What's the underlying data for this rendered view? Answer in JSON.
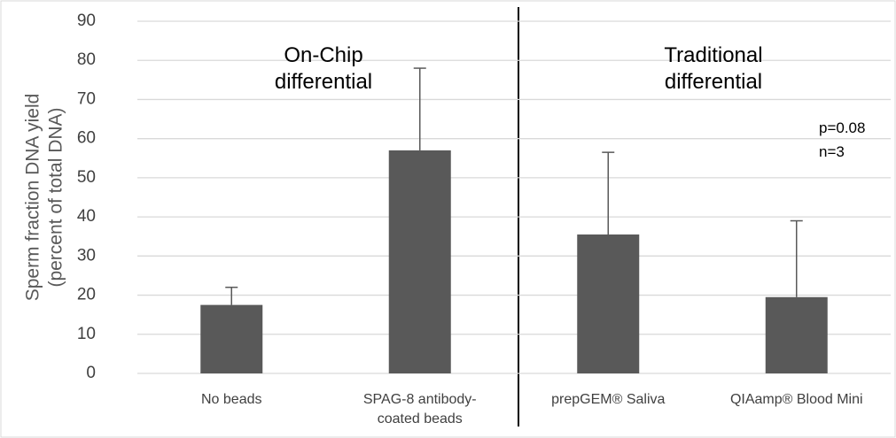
{
  "chart_data": {
    "type": "bar",
    "y_label": [
      "Sperm fraction DNA yield",
      "(percent of total DNA)"
    ],
    "categories": [
      "No beads",
      "SPAG-8 antibody-coated beads",
      "prepGEM® Saliva",
      "QIAamp® Blood Mini"
    ],
    "values": [
      17.5,
      57,
      35.5,
      19.5
    ],
    "errors": [
      4.5,
      21,
      21,
      19.5
    ],
    "color": "#595959",
    "ylim": [
      0,
      90
    ],
    "yticks": [
      0,
      10,
      20,
      30,
      40,
      50,
      60,
      70,
      80,
      90
    ],
    "grid": true,
    "annotations": [
      "On-Chip differential",
      "Traditional differential",
      "p=0.08",
      "n=3"
    ]
  }
}
